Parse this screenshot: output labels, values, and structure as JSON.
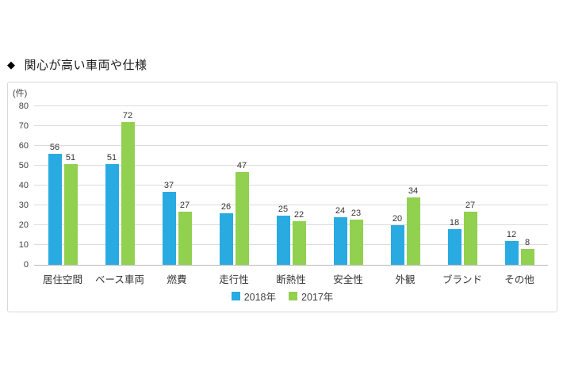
{
  "heading": {
    "bullet": "◆",
    "text": "関心が高い車両や仕様"
  },
  "chart_data": {
    "type": "bar",
    "title": "関心が高い車両や仕様",
    "unit_label": "(件)",
    "categories": [
      "居住空間",
      "ベース車両",
      "燃費",
      "走行性",
      "断熱性",
      "安全性",
      "外観",
      "ブランド",
      "その他"
    ],
    "series": [
      {
        "name": "2018年",
        "color": "#29abe2",
        "values": [
          56,
          51,
          37,
          26,
          25,
          24,
          20,
          18,
          12
        ]
      },
      {
        "name": "2017年",
        "color": "#92d050",
        "values": [
          51,
          72,
          27,
          47,
          22,
          23,
          34,
          27,
          8
        ]
      }
    ],
    "ylim": [
      0,
      80
    ],
    "yticks": [
      0,
      10,
      20,
      30,
      40,
      50,
      60,
      70,
      80
    ],
    "grid": true,
    "legend_position": "bottom",
    "data_labels": true
  },
  "colors": {
    "gridline": "#dcdcdc",
    "axis_line": "#b8b8b8",
    "tick_text": "#404040",
    "box_border": "#d9d9d9",
    "series_2018": "#29abe2",
    "series_2017": "#92d050"
  }
}
